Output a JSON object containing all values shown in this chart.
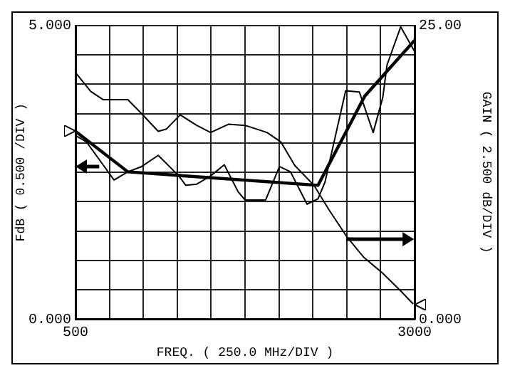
{
  "chart_data": {
    "type": "line",
    "xlabel": "FREQ. ( 250.0 MHz/DIV )",
    "ylabel": "FdB ( 0.500 /DIV )",
    "y2label": "GAIN ( 2.500 dB/DIV )",
    "xlim": [
      500,
      3000
    ],
    "xticks": [
      {
        "value": 500,
        "label": "500"
      },
      {
        "value": 750,
        "label": null
      },
      {
        "value": 1000,
        "label": null
      },
      {
        "value": 1250,
        "label": null
      },
      {
        "value": 1500,
        "label": null
      },
      {
        "value": 1750,
        "label": null
      },
      {
        "value": 2000,
        "label": null
      },
      {
        "value": 2250,
        "label": null
      },
      {
        "value": 2500,
        "label": null
      },
      {
        "value": 2750,
        "label": null
      },
      {
        "value": 3000,
        "label": "3000"
      }
    ],
    "ylim": [
      0,
      5
    ],
    "yticks": [
      {
        "value": 0,
        "label": "0.000"
      },
      {
        "value": 0.5,
        "label": null
      },
      {
        "value": 1,
        "label": null
      },
      {
        "value": 1.5,
        "label": null
      },
      {
        "value": 2,
        "label": null
      },
      {
        "value": 2.5,
        "label": null
      },
      {
        "value": 3,
        "label": null
      },
      {
        "value": 3.5,
        "label": null
      },
      {
        "value": 4,
        "label": null
      },
      {
        "value": 4.5,
        "label": null
      },
      {
        "value": 5,
        "label": "5.000"
      }
    ],
    "y2lim": [
      0,
      25
    ],
    "y2ticks": [
      {
        "value": 0,
        "label": "0.000"
      },
      {
        "value": 25,
        "label": "25.00"
      }
    ],
    "grid": true,
    "legend": false,
    "marker": "none",
    "line_style": "solid",
    "series": [
      {
        "color": "#000000",
        "axis": "y2",
        "x": [
          500,
          612,
          703,
          805,
          886,
          988,
          1110,
          1171,
          1272,
          1394,
          1496,
          1628,
          1750,
          1780,
          1912,
          2014,
          2116,
          2258,
          2370,
          2502,
          2623,
          2766,
          2898,
          2990
        ],
        "values": [
          21.0,
          19.4,
          18.7,
          18.7,
          18.7,
          17.5,
          16.0,
          16.2,
          17.4,
          16.5,
          15.9,
          16.6,
          16.5,
          16.4,
          15.9,
          15.1,
          13.1,
          11.4,
          9.3,
          7.0,
          5.3,
          3.9,
          2.4,
          1.3
        ]
      },
      {
        "color": "#000000",
        "x": [
          500,
          581,
          703,
          784,
          886,
          988,
          1110,
          1262,
          1313,
          1394,
          1496,
          1597,
          1699,
          1750,
          1902,
          2004,
          2085,
          2207,
          2288,
          2339,
          2492,
          2593,
          2695,
          2766,
          2797,
          2898,
          3000
        ],
        "values": [
          3.13,
          3.02,
          2.63,
          2.37,
          2.51,
          2.6,
          2.79,
          2.44,
          2.28,
          2.3,
          2.44,
          2.63,
          2.17,
          2.03,
          2.03,
          2.6,
          2.51,
          1.96,
          2.05,
          2.33,
          3.89,
          3.87,
          3.18,
          3.78,
          4.33,
          4.98,
          4.56
        ]
      },
      {
        "color": "#000000",
        "x": [
          500,
          886,
          2288,
          2633,
          3000
        ],
        "values": [
          3.2,
          2.51,
          2.28,
          3.8,
          4.75
        ]
      }
    ]
  }
}
